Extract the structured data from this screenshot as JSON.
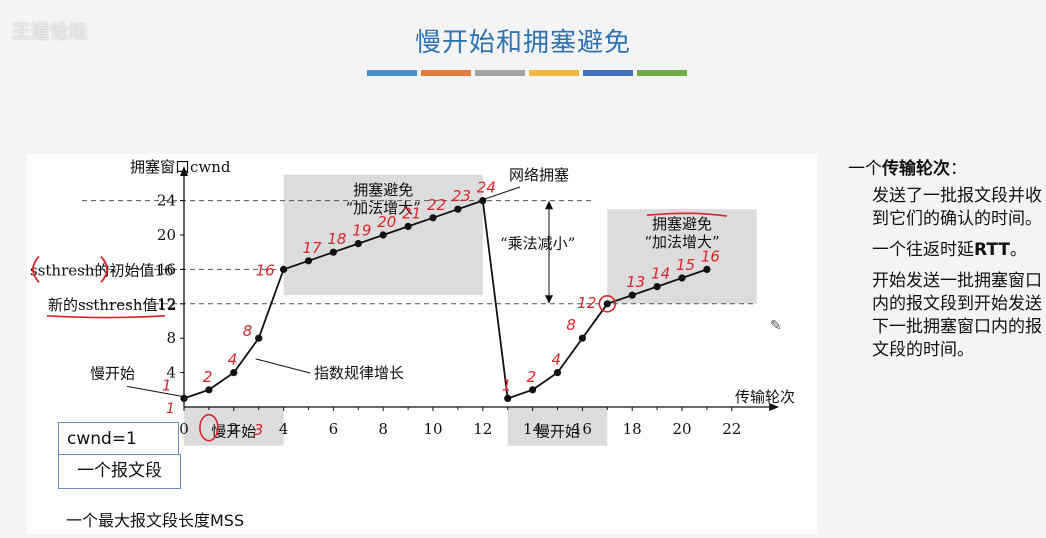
{
  "header": {
    "logo": "王道论坛",
    "title": "慢开始和拥塞避免",
    "color_bars": [
      "#4a8fd0",
      "#e87a3c",
      "#a3a3a3",
      "#f2b93a",
      "#3f72c0",
      "#6fab46"
    ]
  },
  "chart_data": {
    "type": "line",
    "ylabel": "拥塞窗口cwnd",
    "xlabel": "传输轮次",
    "x_ticks": [
      0,
      2,
      4,
      6,
      8,
      10,
      12,
      14,
      16,
      18,
      20,
      22
    ],
    "y_ticks": [
      4,
      8,
      12,
      16,
      20,
      24
    ],
    "xlim": [
      0,
      23
    ],
    "ylim": [
      0,
      27
    ],
    "series": [
      {
        "points": [
          [
            0,
            1
          ],
          [
            1,
            2
          ],
          [
            2,
            4
          ],
          [
            3,
            8
          ],
          [
            4,
            16
          ],
          [
            5,
            17
          ],
          [
            6,
            18
          ],
          [
            7,
            19
          ],
          [
            8,
            20
          ],
          [
            9,
            21
          ],
          [
            10,
            22
          ],
          [
            11,
            23
          ],
          [
            12,
            24
          ],
          [
            13,
            1
          ],
          [
            14,
            2
          ],
          [
            15,
            4
          ],
          [
            16,
            8
          ],
          [
            17,
            12
          ],
          [
            18,
            13
          ],
          [
            19,
            14
          ],
          [
            20,
            15
          ],
          [
            21,
            16
          ]
        ]
      }
    ],
    "reference_lines": [
      24,
      16,
      12
    ],
    "shaded_regions": [
      {
        "label": "慢开始",
        "x": [
          0,
          4
        ],
        "y": [
          -4.5,
          0
        ]
      },
      {
        "label": "拥塞避免\n“加法增大”",
        "x": [
          4,
          12
        ],
        "y": [
          13,
          27
        ]
      },
      {
        "label": "慢开始",
        "x": [
          13,
          17
        ],
        "y": [
          -4.5,
          0
        ]
      },
      {
        "label": "拥塞避免\n“加法增大”",
        "x": [
          17,
          23
        ],
        "y": [
          12,
          23
        ]
      }
    ],
    "annotations": {
      "slow_start_top": "慢开始",
      "exponential": "指数规律增长",
      "congestion": "网络拥塞",
      "mult_decrease": "“乘法减小”",
      "ssthresh_initial": "ssthresh的初始值16",
      "ssthresh_new": "新的ssthresh值12"
    },
    "handwritten_labels": {
      "first_run": [
        "1",
        "2",
        "4",
        "8",
        "16",
        "17",
        "18",
        "19",
        "20",
        "21",
        "22",
        "23",
        "24"
      ],
      "second_run": [
        "1",
        "2",
        "4",
        "8",
        "12",
        "13",
        "14",
        "15",
        "16"
      ],
      "x_extra": [
        "1",
        "3"
      ]
    }
  },
  "right_panel": {
    "heading_prefix": "一个",
    "heading_bold": "传输轮次",
    "heading_suffix": "：",
    "p1": "发送了一批报文段并收到它们的确认的时间。",
    "p2_prefix": "一个往返时延",
    "p2_bold": "RTT",
    "p2_suffix": "。",
    "p3": "开始发送一批拥塞窗口内的报文段到开始发送下一批拥塞窗口内的报文段的时间。"
  },
  "boxes": {
    "cwnd": "cwnd=1",
    "segment": "一个报文段",
    "mss": "一个最大报文段长度MSS"
  }
}
